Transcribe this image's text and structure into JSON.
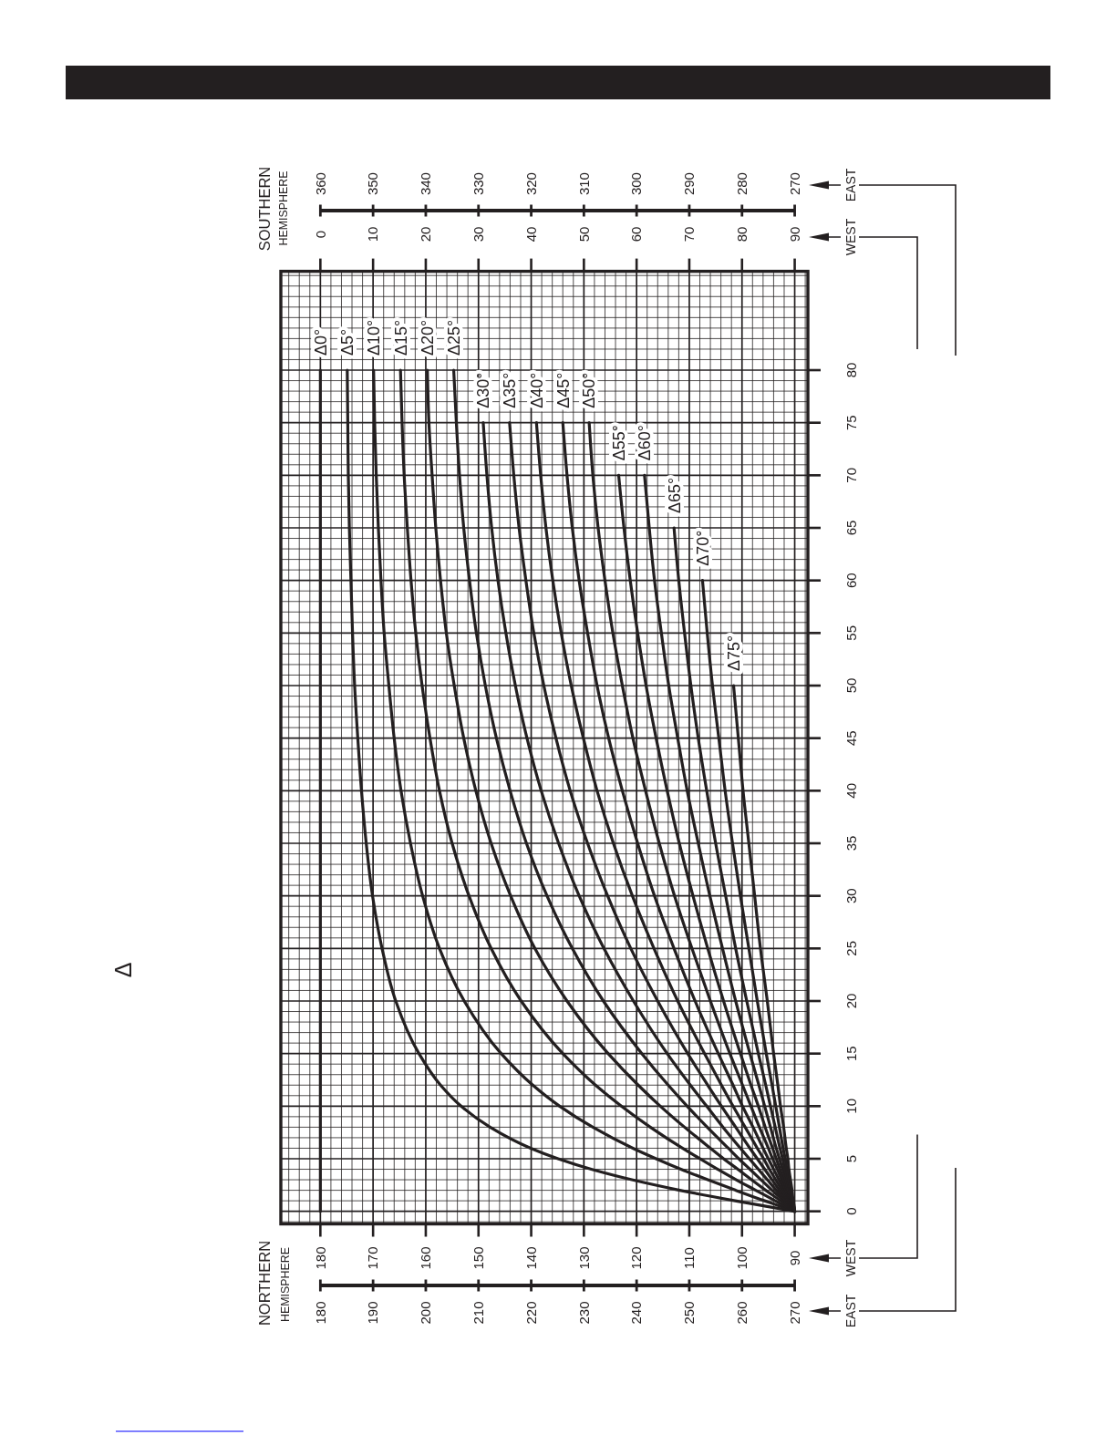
{
  "chart_data": {
    "type": "line",
    "annotations": [
      "NORTHERN",
      "HEMISPHERE",
      "SOUTHERN",
      "HEMISPHERE",
      "Δ",
      "WEST",
      "EAST",
      "WEST",
      "EAST",
      "180",
      "190",
      "200",
      "210",
      "220",
      "230",
      "240",
      "250",
      "260",
      "270",
      "360",
      "350",
      "340",
      "330",
      "320",
      "310",
      "300",
      "290",
      "280",
      "270"
    ],
    "xlim": [
      187.5,
      87.5
    ],
    "xticks": [
      180,
      170,
      160,
      150,
      140,
      130,
      120,
      110,
      100,
      90
    ],
    "x2lim": [
      -7.5,
      92.5
    ],
    "x2ticks": [
      0,
      10,
      20,
      30,
      40,
      50,
      60,
      70,
      80,
      90
    ],
    "ylim": [
      -1.2,
      89.4
    ],
    "yticks": [
      0,
      5,
      10,
      15,
      20,
      25,
      30,
      35,
      40,
      45,
      50,
      55,
      60,
      65,
      70,
      75,
      80
    ],
    "grid": true,
    "series": [
      {
        "name": "Δ0°",
        "color": "#231f20",
        "x": [
          180,
          180
        ],
        "values": [
          0,
          80
        ]
      },
      {
        "name": "Δ5°",
        "color": "#231f20",
        "x": [
          90,
          95.7,
          101.3,
          111.8,
          120.9,
          128.6,
          134.9,
          140.1,
          147.8,
          153.3,
          157.2,
          161.3,
          165.7,
          168.3,
          170.1,
          171.3,
          172.2,
          172.9,
          173.5,
          173.9,
          174.2,
          174.5,
          174.7,
          174.8,
          174.9
        ],
        "values": [
          0,
          0.5,
          1,
          2,
          3,
          4,
          5,
          6,
          8,
          10,
          12,
          15,
          20,
          25,
          30,
          35,
          40,
          45,
          50,
          55,
          60,
          65,
          70,
          75,
          80
        ]
      },
      {
        "name": "Δ10°",
        "color": "#231f20",
        "x": [
          90,
          92.8,
          95.7,
          101.2,
          106.5,
          111.6,
          116.3,
          120.7,
          128.3,
          134.6,
          139.7,
          145.7,
          152.7,
          157.4,
          160.6,
          162.9,
          164.7,
          166.0,
          167.0,
          167.9,
          168.5,
          169.0,
          169.4,
          169.7,
          169.9
        ],
        "values": [
          0,
          0.5,
          1,
          2,
          3,
          4,
          5,
          6,
          8,
          10,
          12,
          15,
          20,
          25,
          30,
          35,
          40,
          45,
          50,
          55,
          60,
          65,
          70,
          75,
          80
        ]
      },
      {
        "name": "Δ15°",
        "color": "#231f20",
        "x": [
          90,
          91.9,
          93.7,
          97.4,
          101.1,
          104.6,
          108.0,
          111.3,
          117.4,
          122.9,
          127.8,
          134.0,
          141.9,
          147.6,
          151.8,
          155.0,
          157.4,
          159.2,
          160.7,
          161.9,
          162.8,
          163.5,
          164.1,
          164.5,
          164.8
        ],
        "values": [
          0,
          0.5,
          1,
          2,
          3,
          4,
          5,
          6,
          8,
          10,
          12,
          15,
          20,
          25,
          30,
          35,
          40,
          45,
          50,
          55,
          60,
          65,
          70,
          75,
          80
        ]
      },
      {
        "name": "Δ20°",
        "color": "#231f20",
        "x": [
          90,
          91.4,
          92.7,
          95.5,
          98.2,
          100.8,
          103.5,
          106.0,
          110.9,
          115.5,
          119.7,
          125.4,
          133.2,
          139.3,
          143.9,
          147.6,
          150.5,
          152.8,
          154.6,
          156.1,
          157.2,
          158.1,
          158.8,
          159.4,
          159.7
        ],
        "values": [
          0,
          0.5,
          1,
          2,
          3,
          4,
          5,
          6,
          8,
          10,
          12,
          15,
          20,
          25,
          30,
          35,
          40,
          45,
          50,
          55,
          60,
          65,
          70,
          75,
          80
        ]
      },
      {
        "name": "Δ25°",
        "color": "#231f20",
        "x": [
          90,
          91.1,
          92.1,
          94.3,
          96.4,
          98.5,
          100.6,
          102.6,
          106.6,
          110.4,
          114.0,
          119.0,
          126.3,
          132.2,
          137.0,
          140.9,
          144.0,
          146.6,
          148.7,
          150.4,
          151.7,
          152.8,
          153.6,
          154.2,
          154.7
        ],
        "values": [
          0,
          0.5,
          1,
          2,
          3,
          4,
          5,
          6,
          8,
          10,
          12,
          15,
          20,
          25,
          30,
          35,
          40,
          45,
          50,
          55,
          60,
          65,
          70,
          75,
          80
        ]
      },
      {
        "name": "Δ30°",
        "color": "#231f20",
        "x": [
          90,
          90.9,
          91.7,
          93.5,
          95.2,
          96.9,
          98.6,
          100.3,
          103.6,
          106.7,
          109.8,
          114.2,
          120.6,
          126.2,
          130.9,
          134.8,
          138.1,
          140.8,
          143.0,
          144.8,
          146.3,
          147.5,
          148.4,
          149.1
        ],
        "values": [
          0,
          0.5,
          1,
          2,
          3,
          4,
          5,
          6,
          8,
          10,
          12,
          15,
          20,
          25,
          30,
          35,
          40,
          45,
          50,
          55,
          60,
          65,
          70,
          75
        ]
      },
      {
        "name": "Δ35°",
        "color": "#231f20",
        "x": [
          90,
          90.7,
          91.4,
          92.9,
          94.3,
          95.7,
          97.1,
          98.5,
          101.2,
          103.9,
          106.5,
          110.3,
          116.0,
          121.1,
          125.5,
          129.3,
          132.6,
          135.3,
          137.6,
          139.5,
          141.0,
          142.3,
          143.3,
          144.1
        ],
        "values": [
          0,
          0.5,
          1,
          2,
          3,
          4,
          5,
          6,
          8,
          10,
          12,
          15,
          20,
          25,
          30,
          35,
          40,
          45,
          50,
          55,
          60,
          65,
          70,
          75
        ]
      },
      {
        "name": "Δ40°",
        "color": "#231f20",
        "x": [
          90,
          90.6,
          91.2,
          92.4,
          93.6,
          94.8,
          95.9,
          97.1,
          99.4,
          101.7,
          103.9,
          107.1,
          112.2,
          116.7,
          120.8,
          124.4,
          127.5,
          130.1,
          132.4,
          134.3,
          135.9,
          137.2,
          138.2,
          139.0
        ],
        "values": [
          0,
          0.5,
          1,
          2,
          3,
          4,
          5,
          6,
          8,
          10,
          12,
          15,
          20,
          25,
          30,
          35,
          40,
          45,
          50,
          55,
          60,
          65,
          70,
          75
        ]
      },
      {
        "name": "Δ45°",
        "color": "#231f20",
        "x": [
          90,
          90.5,
          91.0,
          92.0,
          93.0,
          94.0,
          95.0,
          96.0,
          97.9,
          99.9,
          101.7,
          104.5,
          108.9,
          112.9,
          116.6,
          119.8,
          122.7,
          125.3,
          127.5,
          129.3,
          130.9,
          132.2,
          133.2,
          134.0
        ],
        "values": [
          0,
          0.5,
          1,
          2,
          3,
          4,
          5,
          6,
          8,
          10,
          12,
          15,
          20,
          25,
          30,
          35,
          40,
          45,
          50,
          55,
          60,
          65,
          70,
          75
        ]
      },
      {
        "name": "Δ50°",
        "color": "#231f20",
        "x": [
          90,
          90.4,
          90.8,
          91.7,
          92.5,
          93.3,
          94.2,
          95.0,
          96.7,
          98.3,
          99.9,
          102.3,
          106.0,
          109.5,
          112.8,
          115.7,
          118.3,
          120.7,
          122.7,
          124.5,
          126.0,
          127.3,
          128.3,
          129.0
        ],
        "values": [
          0,
          0.5,
          1,
          2,
          3,
          4,
          5,
          6,
          8,
          10,
          12,
          15,
          20,
          25,
          30,
          35,
          40,
          45,
          50,
          55,
          60,
          65,
          70,
          75
        ]
      },
      {
        "name": "Δ55°",
        "color": "#231f20",
        "x": [
          90,
          90.4,
          90.7,
          91.4,
          92.1,
          92.8,
          93.5,
          94.2,
          95.6,
          96.9,
          98.3,
          100.3,
          103.5,
          106.5,
          109.3,
          111.9,
          114.2,
          116.3,
          118.2,
          119.8,
          121.2,
          122.4,
          123.4
        ],
        "values": [
          0,
          0.5,
          1,
          2,
          3,
          4,
          5,
          6,
          8,
          10,
          12,
          15,
          20,
          25,
          30,
          35,
          40,
          45,
          50,
          55,
          60,
          65,
          70
        ]
      },
      {
        "name": "Δ60°",
        "color": "#231f20",
        "x": [
          90,
          90.3,
          90.6,
          91.2,
          91.7,
          92.3,
          92.9,
          93.5,
          94.6,
          95.7,
          96.8,
          98.5,
          101.2,
          103.7,
          106.1,
          108.3,
          110.4,
          112.2,
          113.9,
          115.3,
          116.6,
          117.6,
          118.5
        ],
        "values": [
          0,
          0.5,
          1,
          2,
          3,
          4,
          5,
          6,
          8,
          10,
          12,
          15,
          20,
          25,
          30,
          35,
          40,
          45,
          50,
          55,
          60,
          65,
          70
        ]
      },
      {
        "name": "Δ65°",
        "color": "#231f20",
        "x": [
          90,
          90.2,
          90.5,
          90.9,
          91.4,
          91.9,
          92.3,
          92.8,
          93.7,
          94.6,
          95.5,
          96.9,
          99.1,
          101.2,
          103.1,
          105.0,
          106.7,
          108.3,
          109.7,
          110.9,
          112.0,
          112.9
        ],
        "values": [
          0,
          0.5,
          1,
          2,
          3,
          4,
          5,
          6,
          8,
          10,
          12,
          15,
          20,
          25,
          30,
          35,
          40,
          45,
          50,
          55,
          60,
          65
        ]
      },
      {
        "name": "Δ70°",
        "color": "#231f20",
        "x": [
          90,
          90.2,
          90.4,
          90.7,
          91.1,
          91.5,
          91.8,
          92.2,
          92.9,
          93.6,
          94.3,
          95.4,
          97.1,
          98.7,
          100.3,
          101.8,
          103.2,
          104.4,
          105.6,
          106.6,
          107.5
        ],
        "values": [
          0,
          0.5,
          1,
          2,
          3,
          4,
          5,
          6,
          8,
          10,
          12,
          15,
          20,
          25,
          30,
          35,
          40,
          45,
          50,
          55,
          60
        ]
      },
      {
        "name": "Δ75°",
        "color": "#231f20",
        "x": [
          90,
          90.1,
          90.3,
          90.5,
          90.8,
          91.1,
          91.3,
          91.6,
          92.1,
          92.7,
          93.2,
          94.0,
          95.2,
          96.5,
          97.6,
          98.7,
          99.8,
          100.7,
          101.6
        ],
        "values": [
          0,
          0.5,
          1,
          2,
          3,
          4,
          5,
          6,
          8,
          10,
          12,
          15,
          20,
          25,
          30,
          35,
          40,
          45,
          50
        ]
      }
    ]
  }
}
